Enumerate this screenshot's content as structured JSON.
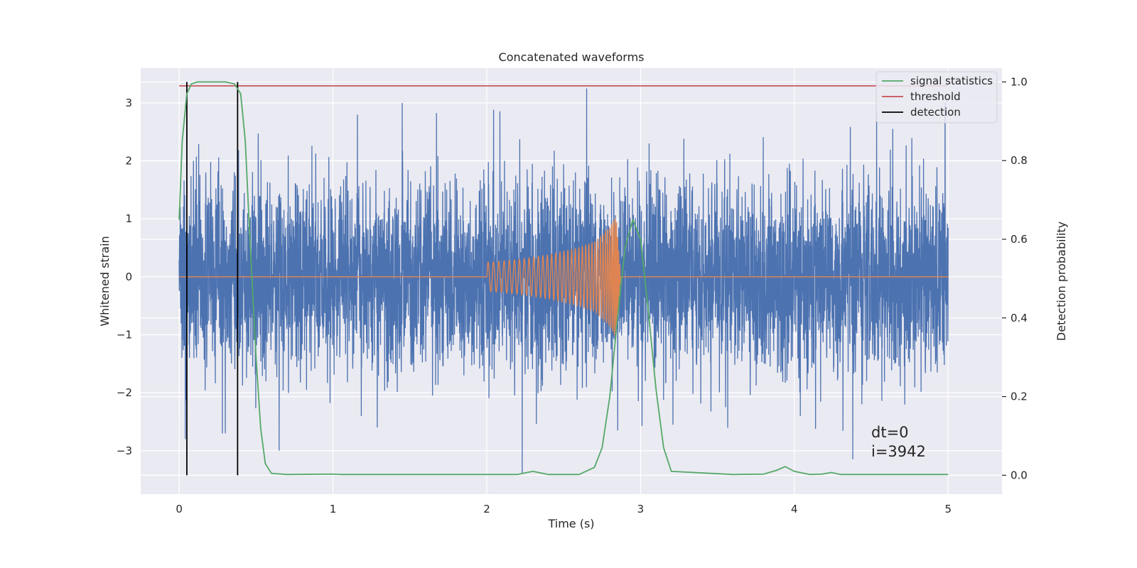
{
  "chart_data": {
    "type": "line",
    "title": "Concatenated waveforms",
    "xlabel": "Time (s)",
    "ylabel": "Whitened strain",
    "y2label": "Detection probability",
    "xlim": [
      -0.25,
      5.35
    ],
    "ylim": [
      -3.75,
      3.6
    ],
    "y2lim": [
      -0.048,
      1.035
    ],
    "xticks": [
      0,
      1,
      2,
      3,
      4,
      5
    ],
    "yticks": [
      -3,
      -2,
      -1,
      0,
      1,
      2,
      3
    ],
    "y2ticks": [
      0.0,
      0.2,
      0.4,
      0.6,
      0.8,
      1.0
    ],
    "grid": true,
    "legend_placement": "upper right",
    "colors": {
      "background": "#eaeaf2",
      "grid": "#ffffff",
      "noise": "#4c72b0",
      "chirp": "#dd8452",
      "statistics": "#55a868",
      "threshold": "#c44e52",
      "detection": "#000000"
    },
    "series": [
      {
        "name": "",
        "axis": "left",
        "color": "#4c72b0",
        "description": "whitened noise",
        "x_range": [
          0,
          5
        ],
        "envelope_typical": 2.1,
        "peaks": [
          {
            "x": 0.04,
            "y": -2.8
          },
          {
            "x": 0.3,
            "y": -2.7
          },
          {
            "x": 0.65,
            "y": -3.0
          },
          {
            "x": 1.45,
            "y": 3.0
          },
          {
            "x": 2.23,
            "y": -3.4
          },
          {
            "x": 2.65,
            "y": 3.25
          },
          {
            "x": 4.38,
            "y": -3.15
          },
          {
            "x": 4.98,
            "y": 3.0
          }
        ]
      },
      {
        "name": "",
        "axis": "left",
        "color": "#dd8452",
        "description": "injected chirp",
        "x": [
          2.0,
          2.2,
          2.4,
          2.6,
          2.7,
          2.8,
          2.84,
          2.87
        ],
        "amplitude": [
          0.25,
          0.3,
          0.38,
          0.5,
          0.6,
          0.85,
          1.05,
          0.05
        ]
      },
      {
        "name": "signal statistics",
        "axis": "right",
        "color": "#55a868",
        "x": [
          0.0,
          0.02,
          0.05,
          0.08,
          0.12,
          0.2,
          0.3,
          0.36,
          0.4,
          0.43,
          0.46,
          0.5,
          0.53,
          0.56,
          0.6,
          0.7,
          1.0,
          1.05,
          1.2,
          2.0,
          2.2,
          2.3,
          2.4,
          2.6,
          2.7,
          2.75,
          2.8,
          2.85,
          2.9,
          2.95,
          3.0,
          3.05,
          3.1,
          3.15,
          3.2,
          3.6,
          3.8,
          3.88,
          3.94,
          4.0,
          4.1,
          4.18,
          4.24,
          4.3,
          4.5,
          5.0
        ],
        "y": [
          0.65,
          0.85,
          0.97,
          0.995,
          1.0,
          1.0,
          1.0,
          0.995,
          0.97,
          0.85,
          0.6,
          0.3,
          0.12,
          0.03,
          0.005,
          0.002,
          0.003,
          0.002,
          0.002,
          0.002,
          0.002,
          0.01,
          0.002,
          0.002,
          0.02,
          0.07,
          0.2,
          0.4,
          0.58,
          0.65,
          0.6,
          0.42,
          0.22,
          0.07,
          0.01,
          0.002,
          0.003,
          0.012,
          0.022,
          0.01,
          0.002,
          0.003,
          0.007,
          0.002,
          0.002,
          0.002
        ]
      },
      {
        "name": "threshold",
        "axis": "right",
        "color": "#c44e52",
        "x": [
          0,
          5
        ],
        "y": [
          0.99,
          0.99
        ]
      },
      {
        "name": "detection",
        "axis": "right",
        "color": "#000000",
        "x": [
          0.05,
          0.38
        ],
        "y_range": [
          0.0,
          1.0
        ]
      }
    ],
    "annotations": [
      "dt=0",
      "i=3942"
    ]
  }
}
